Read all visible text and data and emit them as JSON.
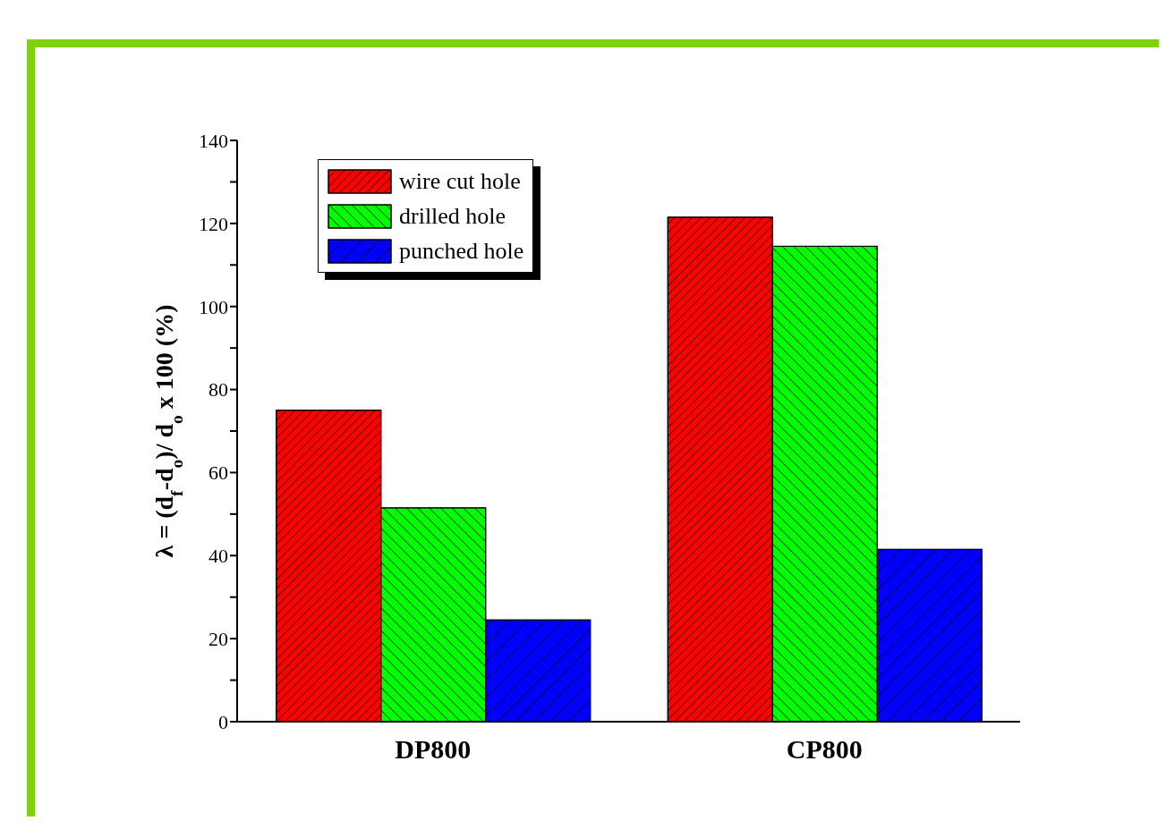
{
  "chart_data": {
    "type": "bar",
    "ylabel": "λ = (d$_{f}$-d$_{o}$)/ d$_{o}$ x 100 (%)",
    "categories": [
      "DP800",
      "CP800"
    ],
    "series": [
      {
        "name": "wire cut hole",
        "color": "#ff0000",
        "values": [
          75,
          121.5
        ]
      },
      {
        "name": "drilled hole",
        "color": "#00ff00",
        "values": [
          51.5,
          114.5
        ]
      },
      {
        "name": "punched hole",
        "color": "#0000ff",
        "values": [
          24.5,
          41.5
        ]
      }
    ],
    "ylim": [
      0,
      140
    ],
    "yticks": [
      0,
      {
        "value": 10,
        "label": null
      },
      20,
      {
        "value": 30,
        "label": null
      },
      40,
      {
        "value": 50,
        "label": null
      },
      60,
      {
        "value": 70,
        "label": null
      },
      80,
      {
        "value": 90,
        "label": null
      },
      100,
      {
        "value": 110,
        "label": null
      },
      120,
      {
        "value": 130,
        "label": null
      },
      140
    ],
    "legend": "top left"
  }
}
